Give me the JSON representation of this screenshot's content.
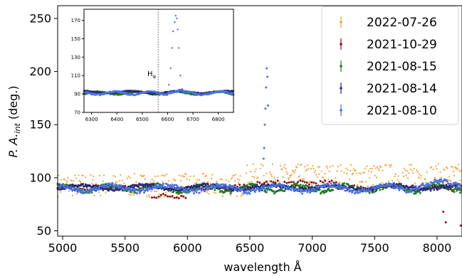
{
  "chart_data": {
    "type": "scatter",
    "title": "",
    "xlabel": "wavelength Å",
    "ylabel": "P. A. int (deg.)",
    "ylabel_main": "P. A.",
    "ylabel_sub": "int",
    "ylabel_unit": " (deg.)",
    "xlim": [
      4960,
      8200
    ],
    "ylim": [
      45,
      262
    ],
    "xticks": [
      5000,
      5500,
      6000,
      6500,
      7000,
      7500,
      8000
    ],
    "yticks": [
      50,
      100,
      150,
      200,
      250
    ],
    "grid": false,
    "legend_position": "top-right",
    "series": [
      {
        "name": "2022-07-26",
        "color": "#f5a030"
      },
      {
        "name": "2021-10-29",
        "color": "#8b1010"
      },
      {
        "name": "2021-08-15",
        "color": "#207a20"
      },
      {
        "name": "2021-08-14",
        "color": "#2a2a7a"
      },
      {
        "name": "2021-08-10",
        "color": "#4a72e0"
      }
    ],
    "peak_points": {
      "series": "2021-08-10",
      "x": [
        6610,
        6615,
        6620,
        6625,
        6630,
        6635,
        6640,
        6645
      ],
      "y": [
        118,
        128,
        150,
        165,
        185,
        203,
        195,
        168
      ]
    },
    "outlier_points": {
      "series": "2021-10-29",
      "x": [
        8050,
        8070,
        8190
      ],
      "y": [
        68,
        58,
        55
      ]
    },
    "inset": {
      "xlim": [
        6270,
        6860
      ],
      "ylim": [
        70,
        182
      ],
      "xticks": [
        6300,
        6400,
        6500,
        6600,
        6700,
        6800
      ],
      "yticks": [
        70,
        90,
        110,
        130,
        150,
        170
      ],
      "annotation": "Hα",
      "annotation_main": "H",
      "annotation_sub": "α",
      "line_x": 6563,
      "peak_x": [
        6605,
        6612,
        6618,
        6622,
        6628,
        6632,
        6636,
        6640,
        6644,
        6650
      ],
      "peak_y": [
        100,
        118,
        140,
        158,
        168,
        175,
        172,
        160,
        140,
        110
      ]
    }
  }
}
